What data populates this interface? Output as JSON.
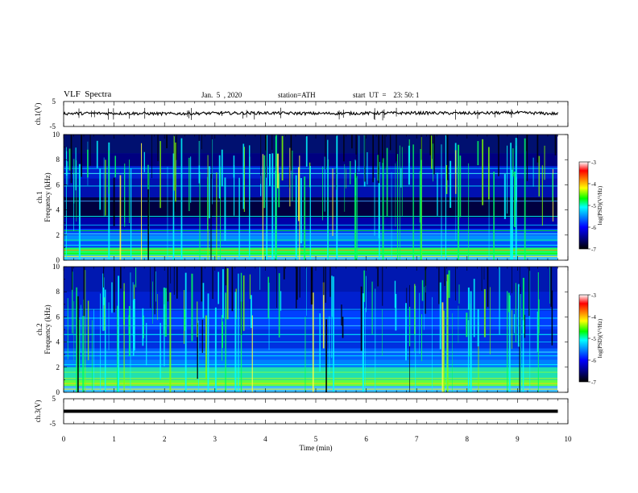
{
  "header": {
    "title": "VLF  Spectra",
    "date": "Jan.  5  , 2020",
    "station": "station=ATH",
    "start": "start  UT  =    23: 50: 1"
  },
  "chart_data": [
    {
      "type": "line",
      "name": "ch1-waveform",
      "ylabel": "ch.1(V)",
      "ylim": [
        -5,
        5
      ],
      "yticks": [
        "5",
        "-5"
      ],
      "x": [
        0,
        1,
        2,
        3,
        4,
        5,
        6,
        7,
        8,
        9,
        9.8
      ],
      "y": [
        0.2,
        0.3,
        0.1,
        0.3,
        0.4,
        0.2,
        0.3,
        0.4,
        0.3,
        0.5,
        0.1
      ]
    },
    {
      "type": "heatmap",
      "name": "ch1-spectrogram",
      "ylabel": "ch.1\nFrequency  (kHz)",
      "ylim": [
        0,
        10
      ],
      "yticks": [
        "0",
        "2",
        "4",
        "6",
        "8",
        "10"
      ],
      "colorbar": {
        "label": "log(PSD)(V²/Hz)",
        "range": [
          -7,
          -3
        ],
        "ticks": [
          "-3",
          "-4",
          "-5",
          "-6",
          "-7"
        ]
      }
    },
    {
      "type": "heatmap",
      "name": "ch2-spectrogram",
      "ylabel": "ch.2\nFrequency  (kHz)",
      "ylim": [
        0,
        10
      ],
      "yticks": [
        "0",
        "2",
        "4",
        "6",
        "8",
        "10"
      ],
      "colorbar": {
        "label": "log(PSD)(V²/Hz)",
        "range": [
          -7,
          -3
        ],
        "ticks": [
          "-3",
          "-4",
          "-5",
          "-6",
          "-7"
        ]
      }
    },
    {
      "type": "line",
      "name": "ch3-waveform",
      "ylabel": "ch.3(V)",
      "ylim": [
        -5,
        5
      ],
      "yticks": [
        "5",
        "-5"
      ],
      "x": [
        0,
        9.8
      ],
      "y": [
        0,
        0
      ]
    }
  ],
  "xaxis": {
    "label": "Time  (min)",
    "range": [
      0,
      10
    ],
    "ticks": [
      "0",
      "1",
      "2",
      "3",
      "4",
      "5",
      "6",
      "7",
      "8",
      "9",
      "10"
    ]
  },
  "colors": {
    "colormap": [
      "#000000",
      "#000080",
      "#0000ff",
      "#0090ff",
      "#00ffff",
      "#00ff00",
      "#ffff00",
      "#ff8000",
      "#ff0000",
      "#ffffff"
    ]
  }
}
